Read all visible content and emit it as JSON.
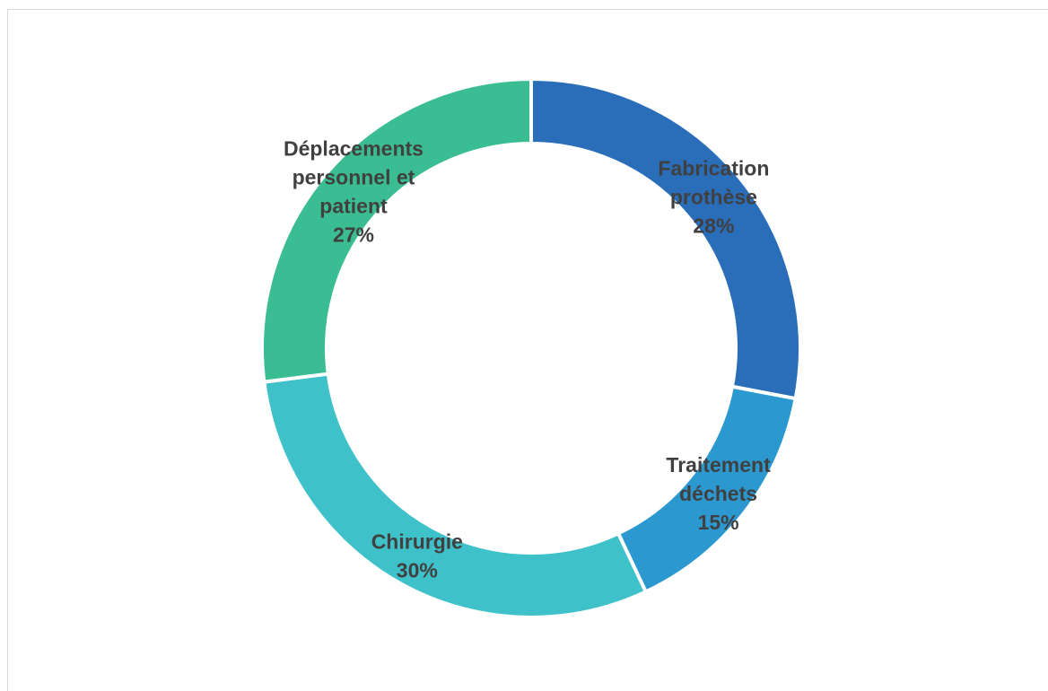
{
  "chart_data": {
    "type": "pie",
    "variant": "donut",
    "title": "",
    "categories": [
      "Fabrication prothèse",
      "Traitement déchets",
      "Chirurgie",
      "Déplacements personnel et patient"
    ],
    "values": [
      28,
      15,
      30,
      27
    ],
    "value_labels": [
      "28%",
      "15%",
      "30%",
      "27%"
    ],
    "label_lines": [
      [
        "Fabrication",
        "prothèse",
        "28%"
      ],
      [
        "Traitement",
        "déchets",
        "15%"
      ],
      [
        "Chirurgie",
        "30%"
      ],
      [
        "Déplacements",
        "personnel et",
        "patient",
        "27%"
      ]
    ],
    "colors": [
      "#2A6DB8",
      "#2B99D0",
      "#3FC1C9",
      "#3BBD93"
    ],
    "label_color": "#404040",
    "start_angle_deg": 0,
    "direction": "clockwise",
    "legend": "none"
  }
}
